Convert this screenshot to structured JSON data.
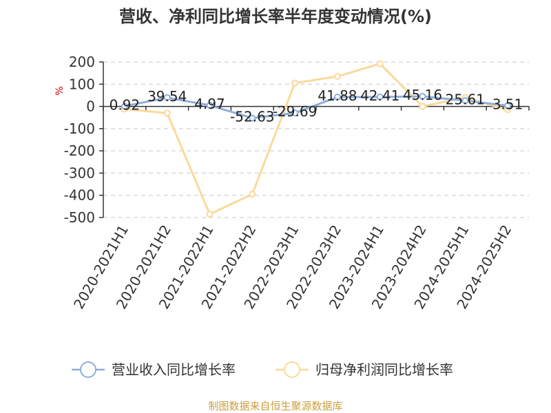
{
  "chart_data": {
    "type": "line",
    "title": "营收、净利同比增长率半年度变动情况(%)",
    "ylabel": "%",
    "ylim": [
      -500,
      200
    ],
    "yticks": [
      200,
      100,
      0,
      -100,
      -200,
      -300,
      -400,
      -500
    ],
    "grid": true,
    "categories": [
      "2020-2021H1",
      "2020-2021H2",
      "2021-2022H1",
      "2021-2022H2",
      "2022-2023H1",
      "2022-2023H2",
      "2023-2024H1",
      "2023-2024H2",
      "2024-2025H1",
      "2024-2025H2"
    ],
    "series": [
      {
        "name": "营业收入同比增长率",
        "color": "#8eaedb",
        "values": [
          0.92,
          39.54,
          4.97,
          -52.63,
          -29.69,
          41.88,
          42.41,
          45.16,
          25.61,
          3.51
        ],
        "labels": [
          "0.92",
          "39.54",
          "4.97",
          "-52.63",
          "-29.69",
          "41.88",
          "42.41",
          "45.16",
          "25.61",
          "3.51"
        ]
      },
      {
        "name": "归母净利润同比增长率",
        "color": "#fbd99a",
        "values": [
          -12,
          -30,
          -485,
          -395,
          105,
          135,
          192,
          0,
          40,
          -15
        ]
      }
    ],
    "legend_position": "bottom"
  },
  "source": "制图数据来自恒生聚源数据库"
}
